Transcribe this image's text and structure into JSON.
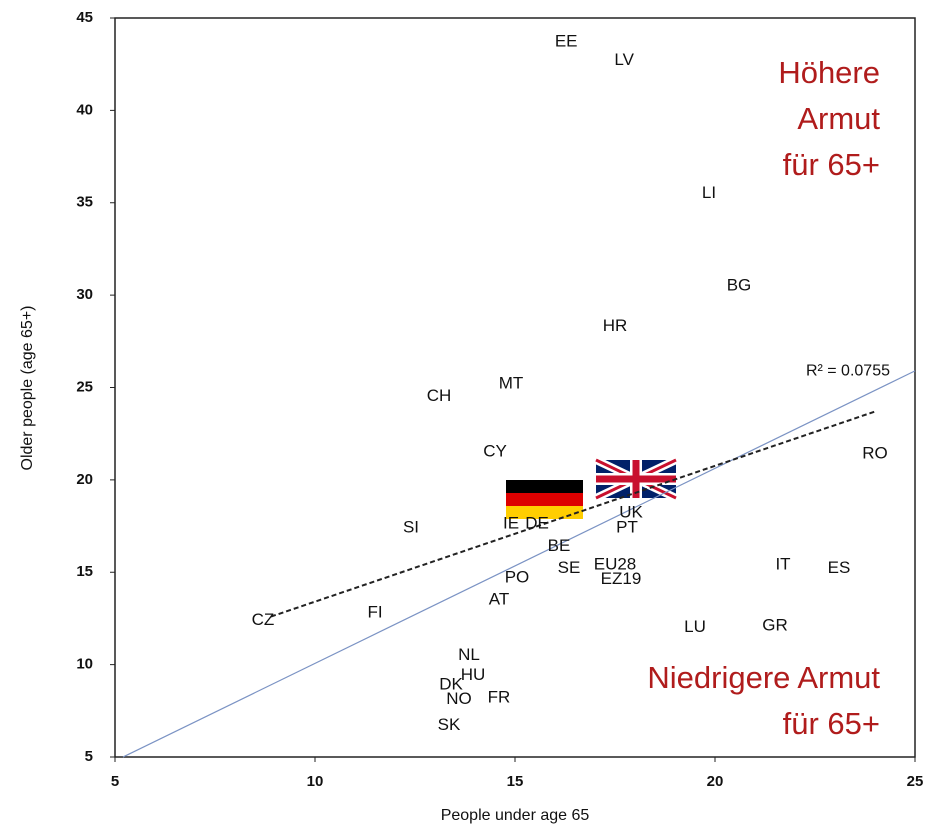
{
  "chart_data": {
    "type": "scatter",
    "xlabel": "People under age 65",
    "ylabel": "Older people (age 65+)",
    "xlim": [
      5,
      25
    ],
    "xticks": [
      5,
      10,
      15,
      20,
      25
    ],
    "ylim": [
      5,
      45
    ],
    "yticks": [
      5,
      10,
      15,
      20,
      25,
      30,
      35,
      40,
      45
    ],
    "labels": [
      "EE",
      "LV",
      "LI",
      "BG",
      "HR",
      "MT",
      "CH",
      "CY",
      "RO",
      "UK",
      "PT",
      "IE",
      "DE",
      "SI",
      "BE",
      "SE",
      "EU28",
      "EZ19",
      "IT",
      "ES",
      "PO",
      "AT",
      "FI",
      "CZ",
      "LU",
      "GR",
      "NL",
      "HU",
      "DK",
      "NO",
      "FR",
      "SK"
    ],
    "x": [
      16.28,
      17.73,
      19.85,
      20.6,
      17.5,
      14.9,
      13.1,
      14.5,
      24.0,
      17.9,
      17.8,
      14.9,
      15.55,
      12.4,
      16.1,
      16.35,
      17.5,
      17.65,
      21.7,
      23.1,
      15.05,
      14.6,
      11.5,
      8.7,
      19.5,
      21.5,
      13.85,
      13.95,
      13.4,
      13.6,
      14.6,
      13.35
    ],
    "y": [
      43.7,
      42.7,
      35.5,
      30.5,
      28.3,
      25.2,
      24.5,
      21.5,
      21.4,
      18.2,
      17.4,
      17.6,
      17.6,
      17.4,
      16.4,
      15.2,
      15.4,
      14.6,
      15.4,
      15.2,
      14.7,
      13.5,
      12.8,
      12.4,
      12.0,
      12.1,
      10.5,
      9.4,
      8.9,
      8.1,
      8.2,
      6.7
    ],
    "trendline": {
      "x": [
        8.9,
        24.0
      ],
      "y": [
        12.6,
        23.7
      ],
      "label": "R² = 0.0755"
    },
    "reference_line": {
      "x": [
        5.2,
        25
      ],
      "y": [
        5,
        25.9
      ]
    },
    "annotations": [
      {
        "lines": [
          "Höhere",
          "Armut",
          "für 65+"
        ]
      },
      {
        "lines": [
          "Niedrigere Armut",
          "für 65+"
        ]
      }
    ],
    "annotation_color": "#b01c1c",
    "reference_color": "#7b93c4"
  }
}
